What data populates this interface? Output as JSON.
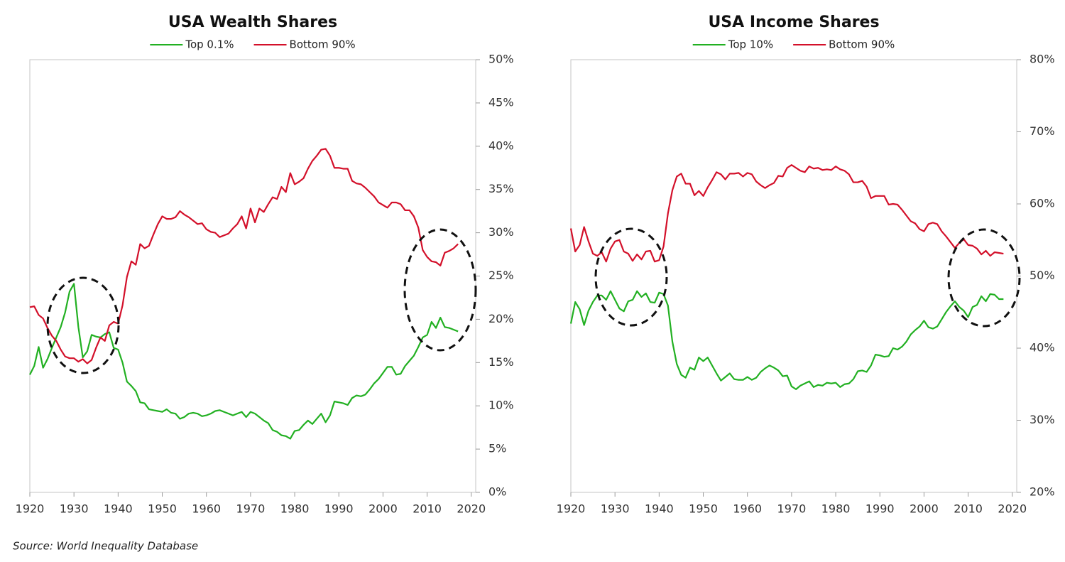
{
  "chart_data": [
    {
      "type": "line",
      "title": "USA Wealth Shares",
      "x": [
        1920,
        1921,
        1922,
        1923,
        1924,
        1925,
        1926,
        1927,
        1928,
        1929,
        1930,
        1931,
        1932,
        1933,
        1934,
        1935,
        1936,
        1937,
        1938,
        1939,
        1940,
        1941,
        1942,
        1943,
        1944,
        1945,
        1946,
        1947,
        1948,
        1949,
        1950,
        1951,
        1952,
        1953,
        1954,
        1955,
        1956,
        1957,
        1958,
        1959,
        1960,
        1961,
        1962,
        1963,
        1964,
        1965,
        1966,
        1967,
        1968,
        1969,
        1970,
        1971,
        1972,
        1973,
        1974,
        1975,
        1976,
        1977,
        1978,
        1979,
        1980,
        1981,
        1982,
        1983,
        1984,
        1985,
        1986,
        1987,
        1988,
        1989,
        1990,
        1991,
        1992,
        1993,
        1994,
        1995,
        1996,
        1997,
        1998,
        1999,
        2000,
        2001,
        2002,
        2003,
        2004,
        2005,
        2006,
        2007,
        2008,
        2009,
        2010,
        2011,
        2012,
        2013,
        2014,
        2015,
        2016,
        2017
      ],
      "series": [
        {
          "name": "Top 0.1%",
          "color": "#22b022",
          "values": [
            13.6,
            14.6,
            16.8,
            14.4,
            15.4,
            16.7,
            17.9,
            19.1,
            20.8,
            23.2,
            24.1,
            19.1,
            15.6,
            16.3,
            18.2,
            18.0,
            17.9,
            18.3,
            18.5,
            16.7,
            16.5,
            15.0,
            12.8,
            12.3,
            11.7,
            10.4,
            10.3,
            9.6,
            9.5,
            9.4,
            9.3,
            9.6,
            9.2,
            9.1,
            8.5,
            8.7,
            9.1,
            9.2,
            9.1,
            8.8,
            8.9,
            9.1,
            9.4,
            9.5,
            9.3,
            9.1,
            8.9,
            9.1,
            9.3,
            8.7,
            9.3,
            9.1,
            8.7,
            8.3,
            8.0,
            7.2,
            7.0,
            6.6,
            6.5,
            6.2,
            7.1,
            7.2,
            7.8,
            8.3,
            7.9,
            8.5,
            9.1,
            8.1,
            8.9,
            10.5,
            10.4,
            10.3,
            10.1,
            10.9,
            11.2,
            11.1,
            11.3,
            11.9,
            12.6,
            13.1,
            13.8,
            14.5,
            14.5,
            13.6,
            13.7,
            14.6,
            15.2,
            15.8,
            16.8,
            17.9,
            18.2,
            19.7,
            19.0,
            20.2,
            19.1,
            19.0,
            18.8,
            18.6
          ]
        },
        {
          "name": "Bottom 90%",
          "color": "#d3102a",
          "values": [
            21.4,
            21.5,
            20.5,
            20.1,
            19.0,
            18.1,
            17.5,
            16.5,
            15.7,
            15.5,
            15.5,
            15.1,
            15.4,
            14.9,
            15.3,
            16.7,
            17.9,
            17.5,
            19.3,
            19.7,
            19.5,
            21.6,
            24.9,
            26.7,
            26.3,
            28.7,
            28.2,
            28.5,
            29.8,
            31.0,
            31.9,
            31.6,
            31.6,
            31.8,
            32.5,
            32.1,
            31.8,
            31.4,
            31.0,
            31.1,
            30.4,
            30.1,
            30.0,
            29.5,
            29.7,
            29.9,
            30.5,
            31.0,
            31.9,
            30.5,
            32.8,
            31.2,
            32.8,
            32.4,
            33.3,
            34.1,
            33.9,
            35.3,
            34.7,
            36.9,
            35.6,
            35.9,
            36.3,
            37.4,
            38.3,
            38.9,
            39.6,
            39.7,
            38.9,
            37.5,
            37.5,
            37.4,
            37.4,
            36.0,
            35.7,
            35.6,
            35.2,
            34.7,
            34.2,
            33.5,
            33.2,
            32.9,
            33.5,
            33.5,
            33.3,
            32.6,
            32.6,
            31.9,
            30.6,
            28.0,
            27.2,
            26.7,
            26.6,
            26.2,
            27.7,
            27.9,
            28.2,
            28.7
          ]
        }
      ],
      "xlim": [
        1920,
        2021
      ],
      "xticks": [
        1920,
        1930,
        1940,
        1950,
        1960,
        1970,
        1980,
        1990,
        2000,
        2010,
        2020
      ],
      "ylim": [
        0,
        50
      ],
      "yticks": [
        {
          "value": 0,
          "label": "0%"
        },
        {
          "value": 5,
          "label": "5%"
        },
        {
          "value": 10,
          "label": "10%"
        },
        {
          "value": 15,
          "label": "15%"
        },
        {
          "value": 20,
          "label": "20%"
        },
        {
          "value": 25,
          "label": "25%"
        },
        {
          "value": 30,
          "label": "30%"
        },
        {
          "value": 35,
          "label": "35%"
        },
        {
          "value": 40,
          "label": "40%"
        },
        {
          "value": 45,
          "label": "45%"
        },
        {
          "value": 50,
          "label": "50%"
        }
      ]
    },
    {
      "type": "line",
      "title": "USA Income Shares",
      "x": [
        1920,
        1921,
        1922,
        1923,
        1924,
        1925,
        1926,
        1927,
        1928,
        1929,
        1930,
        1931,
        1932,
        1933,
        1934,
        1935,
        1936,
        1937,
        1938,
        1939,
        1940,
        1941,
        1942,
        1943,
        1944,
        1945,
        1946,
        1947,
        1948,
        1949,
        1950,
        1951,
        1952,
        1953,
        1954,
        1955,
        1956,
        1957,
        1958,
        1959,
        1960,
        1961,
        1962,
        1963,
        1964,
        1965,
        1966,
        1967,
        1968,
        1969,
        1970,
        1971,
        1972,
        1973,
        1974,
        1975,
        1976,
        1977,
        1978,
        1979,
        1980,
        1981,
        1982,
        1983,
        1984,
        1985,
        1986,
        1987,
        1988,
        1989,
        1990,
        1991,
        1992,
        1993,
        1994,
        1995,
        1996,
        1997,
        1998,
        1999,
        2000,
        2001,
        2002,
        2003,
        2004,
        2005,
        2006,
        2007,
        2008,
        2009,
        2010,
        2011,
        2012,
        2013,
        2014,
        2015,
        2016,
        2017,
        2018
      ],
      "series": [
        {
          "name": "Top 10%",
          "color": "#22b022",
          "values": [
            43.4,
            46.4,
            45.4,
            43.2,
            45.2,
            46.4,
            47.3,
            47.3,
            46.7,
            47.9,
            46.7,
            45.5,
            45.1,
            46.5,
            46.7,
            47.9,
            47.1,
            47.6,
            46.4,
            46.3,
            47.7,
            47.5,
            45.9,
            40.9,
            37.8,
            36.3,
            35.9,
            37.3,
            37.0,
            38.7,
            38.2,
            38.7,
            37.6,
            36.5,
            35.5,
            36.0,
            36.5,
            35.7,
            35.6,
            35.6,
            36.0,
            35.6,
            35.9,
            36.7,
            37.2,
            37.6,
            37.3,
            36.9,
            36.1,
            36.2,
            34.7,
            34.3,
            34.8,
            35.1,
            35.4,
            34.6,
            34.9,
            34.8,
            35.2,
            35.1,
            35.2,
            34.6,
            35.0,
            35.1,
            35.7,
            36.8,
            36.9,
            36.7,
            37.6,
            39.1,
            39.0,
            38.8,
            38.9,
            40.0,
            39.8,
            40.2,
            40.9,
            41.9,
            42.5,
            43.0,
            43.8,
            42.9,
            42.7,
            43.0,
            44.0,
            45.0,
            45.8,
            46.5,
            45.7,
            45.2,
            44.3,
            45.7,
            46.0,
            47.2,
            46.5,
            47.5,
            47.4,
            46.8,
            46.8
          ]
        },
        {
          "name": "Bottom 90%",
          "color": "#d3102a",
          "values": [
            56.6,
            53.4,
            54.3,
            56.8,
            54.8,
            53.1,
            52.8,
            53.3,
            52.0,
            53.8,
            54.8,
            55.0,
            53.4,
            53.1,
            52.1,
            53.0,
            52.3,
            53.4,
            53.5,
            52.0,
            52.2,
            54.1,
            58.7,
            61.9,
            63.8,
            64.2,
            62.8,
            62.8,
            61.2,
            61.8,
            61.1,
            62.3,
            63.3,
            64.4,
            64.1,
            63.4,
            64.2,
            64.2,
            64.3,
            63.8,
            64.3,
            64.1,
            63.1,
            62.6,
            62.2,
            62.6,
            62.9,
            63.9,
            63.8,
            65.0,
            65.4,
            65.0,
            64.6,
            64.4,
            65.2,
            64.9,
            65.0,
            64.7,
            64.8,
            64.7,
            65.2,
            64.8,
            64.6,
            64.1,
            63.0,
            63.0,
            63.2,
            62.4,
            60.8,
            61.1,
            61.1,
            61.1,
            59.9,
            60.0,
            59.9,
            59.2,
            58.4,
            57.6,
            57.3,
            56.5,
            56.2,
            57.2,
            57.4,
            57.2,
            56.2,
            55.5,
            54.7,
            53.9,
            54.6,
            55.1,
            54.3,
            54.2,
            53.8,
            53.0,
            53.5,
            52.8,
            53.3,
            53.2,
            53.1
          ]
        }
      ],
      "xlim": [
        1920,
        2021
      ],
      "xticks": [
        1920,
        1930,
        1940,
        1950,
        1960,
        1970,
        1980,
        1990,
        2000,
        2010,
        2020
      ],
      "ylim": [
        20,
        80
      ],
      "yticks": [
        {
          "value": 20,
          "label": "20%"
        },
        {
          "value": 30,
          "label": "30%"
        },
        {
          "value": 40,
          "label": "40%"
        },
        {
          "value": 50,
          "label": "50%"
        },
        {
          "value": 60,
          "label": "60%"
        },
        {
          "value": 70,
          "label": "70%"
        },
        {
          "value": 80,
          "label": "80%"
        }
      ]
    }
  ],
  "source": "Source: World Inequality Database"
}
